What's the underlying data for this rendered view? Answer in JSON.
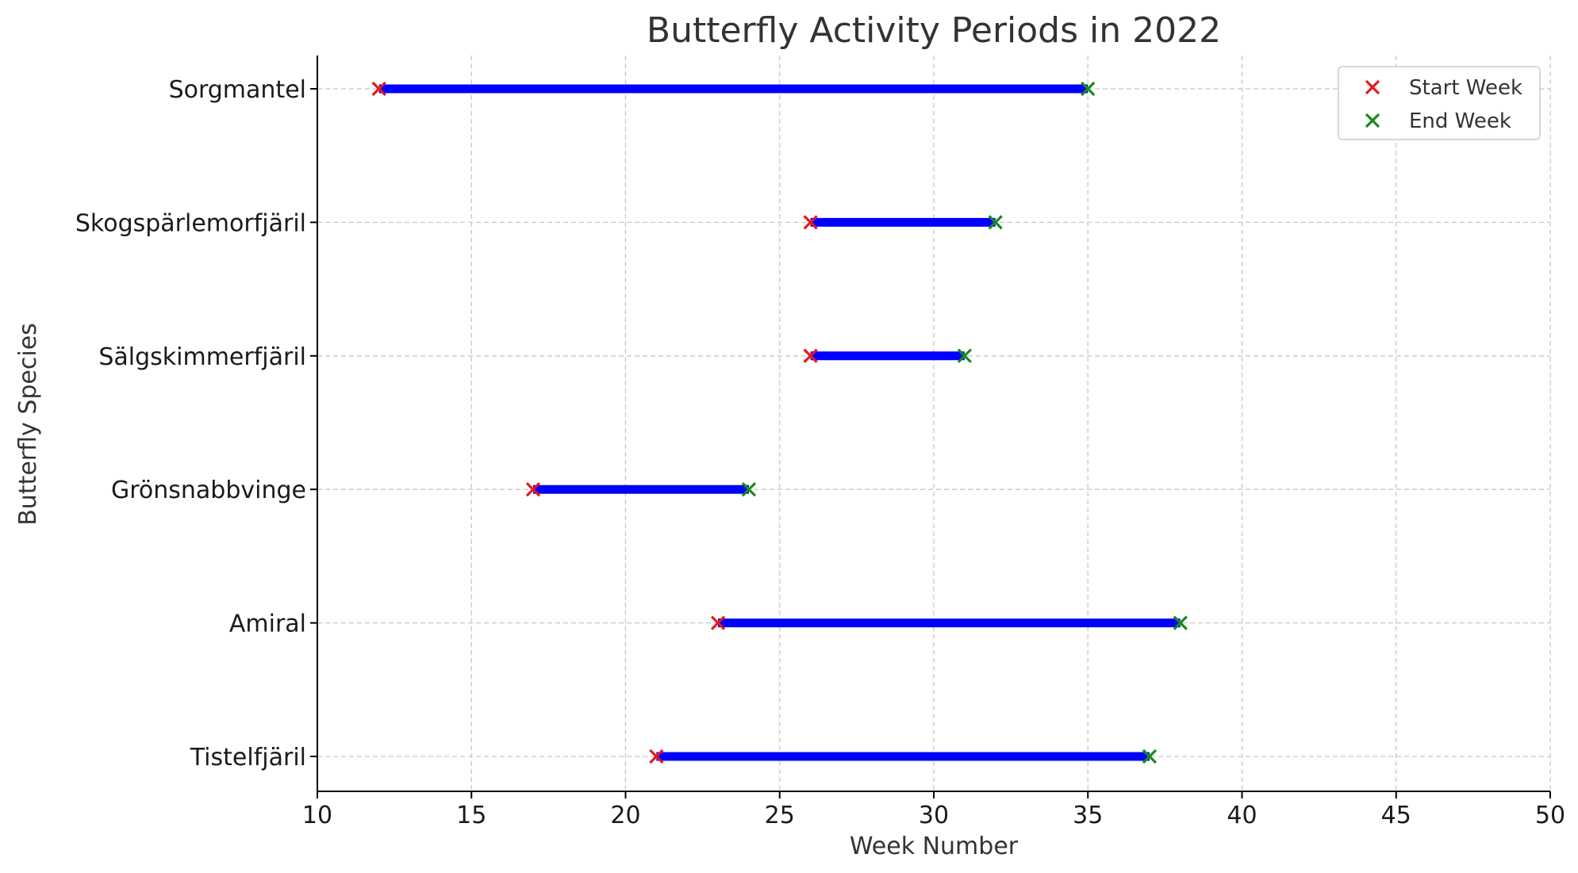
{
  "chart_data": {
    "type": "range-line",
    "title": "Butterfly Activity Periods in 2022",
    "xlabel": "Week Number",
    "ylabel": "Butterfly Species",
    "xlim": [
      10,
      50
    ],
    "xticks": [
      10,
      15,
      20,
      25,
      30,
      35,
      40,
      45,
      50
    ],
    "grid": true,
    "legend_position": "top-right",
    "categories": [
      "Tistelfjäril",
      "Amiral",
      "Grönsnabbvinge",
      "Sälgskimmerfjäril",
      "Skogspärlemorfjäril",
      "Sorgmantel"
    ],
    "start_week": [
      21,
      23,
      17,
      26,
      26,
      12
    ],
    "end_week": [
      37,
      38,
      24,
      31,
      32,
      35
    ],
    "series": [
      {
        "name": "Start Week",
        "color": "#e41a1c",
        "marker": "x"
      },
      {
        "name": "End Week",
        "color": "#1a8a1a",
        "marker": "x"
      }
    ],
    "range_color": "#0000ff"
  }
}
